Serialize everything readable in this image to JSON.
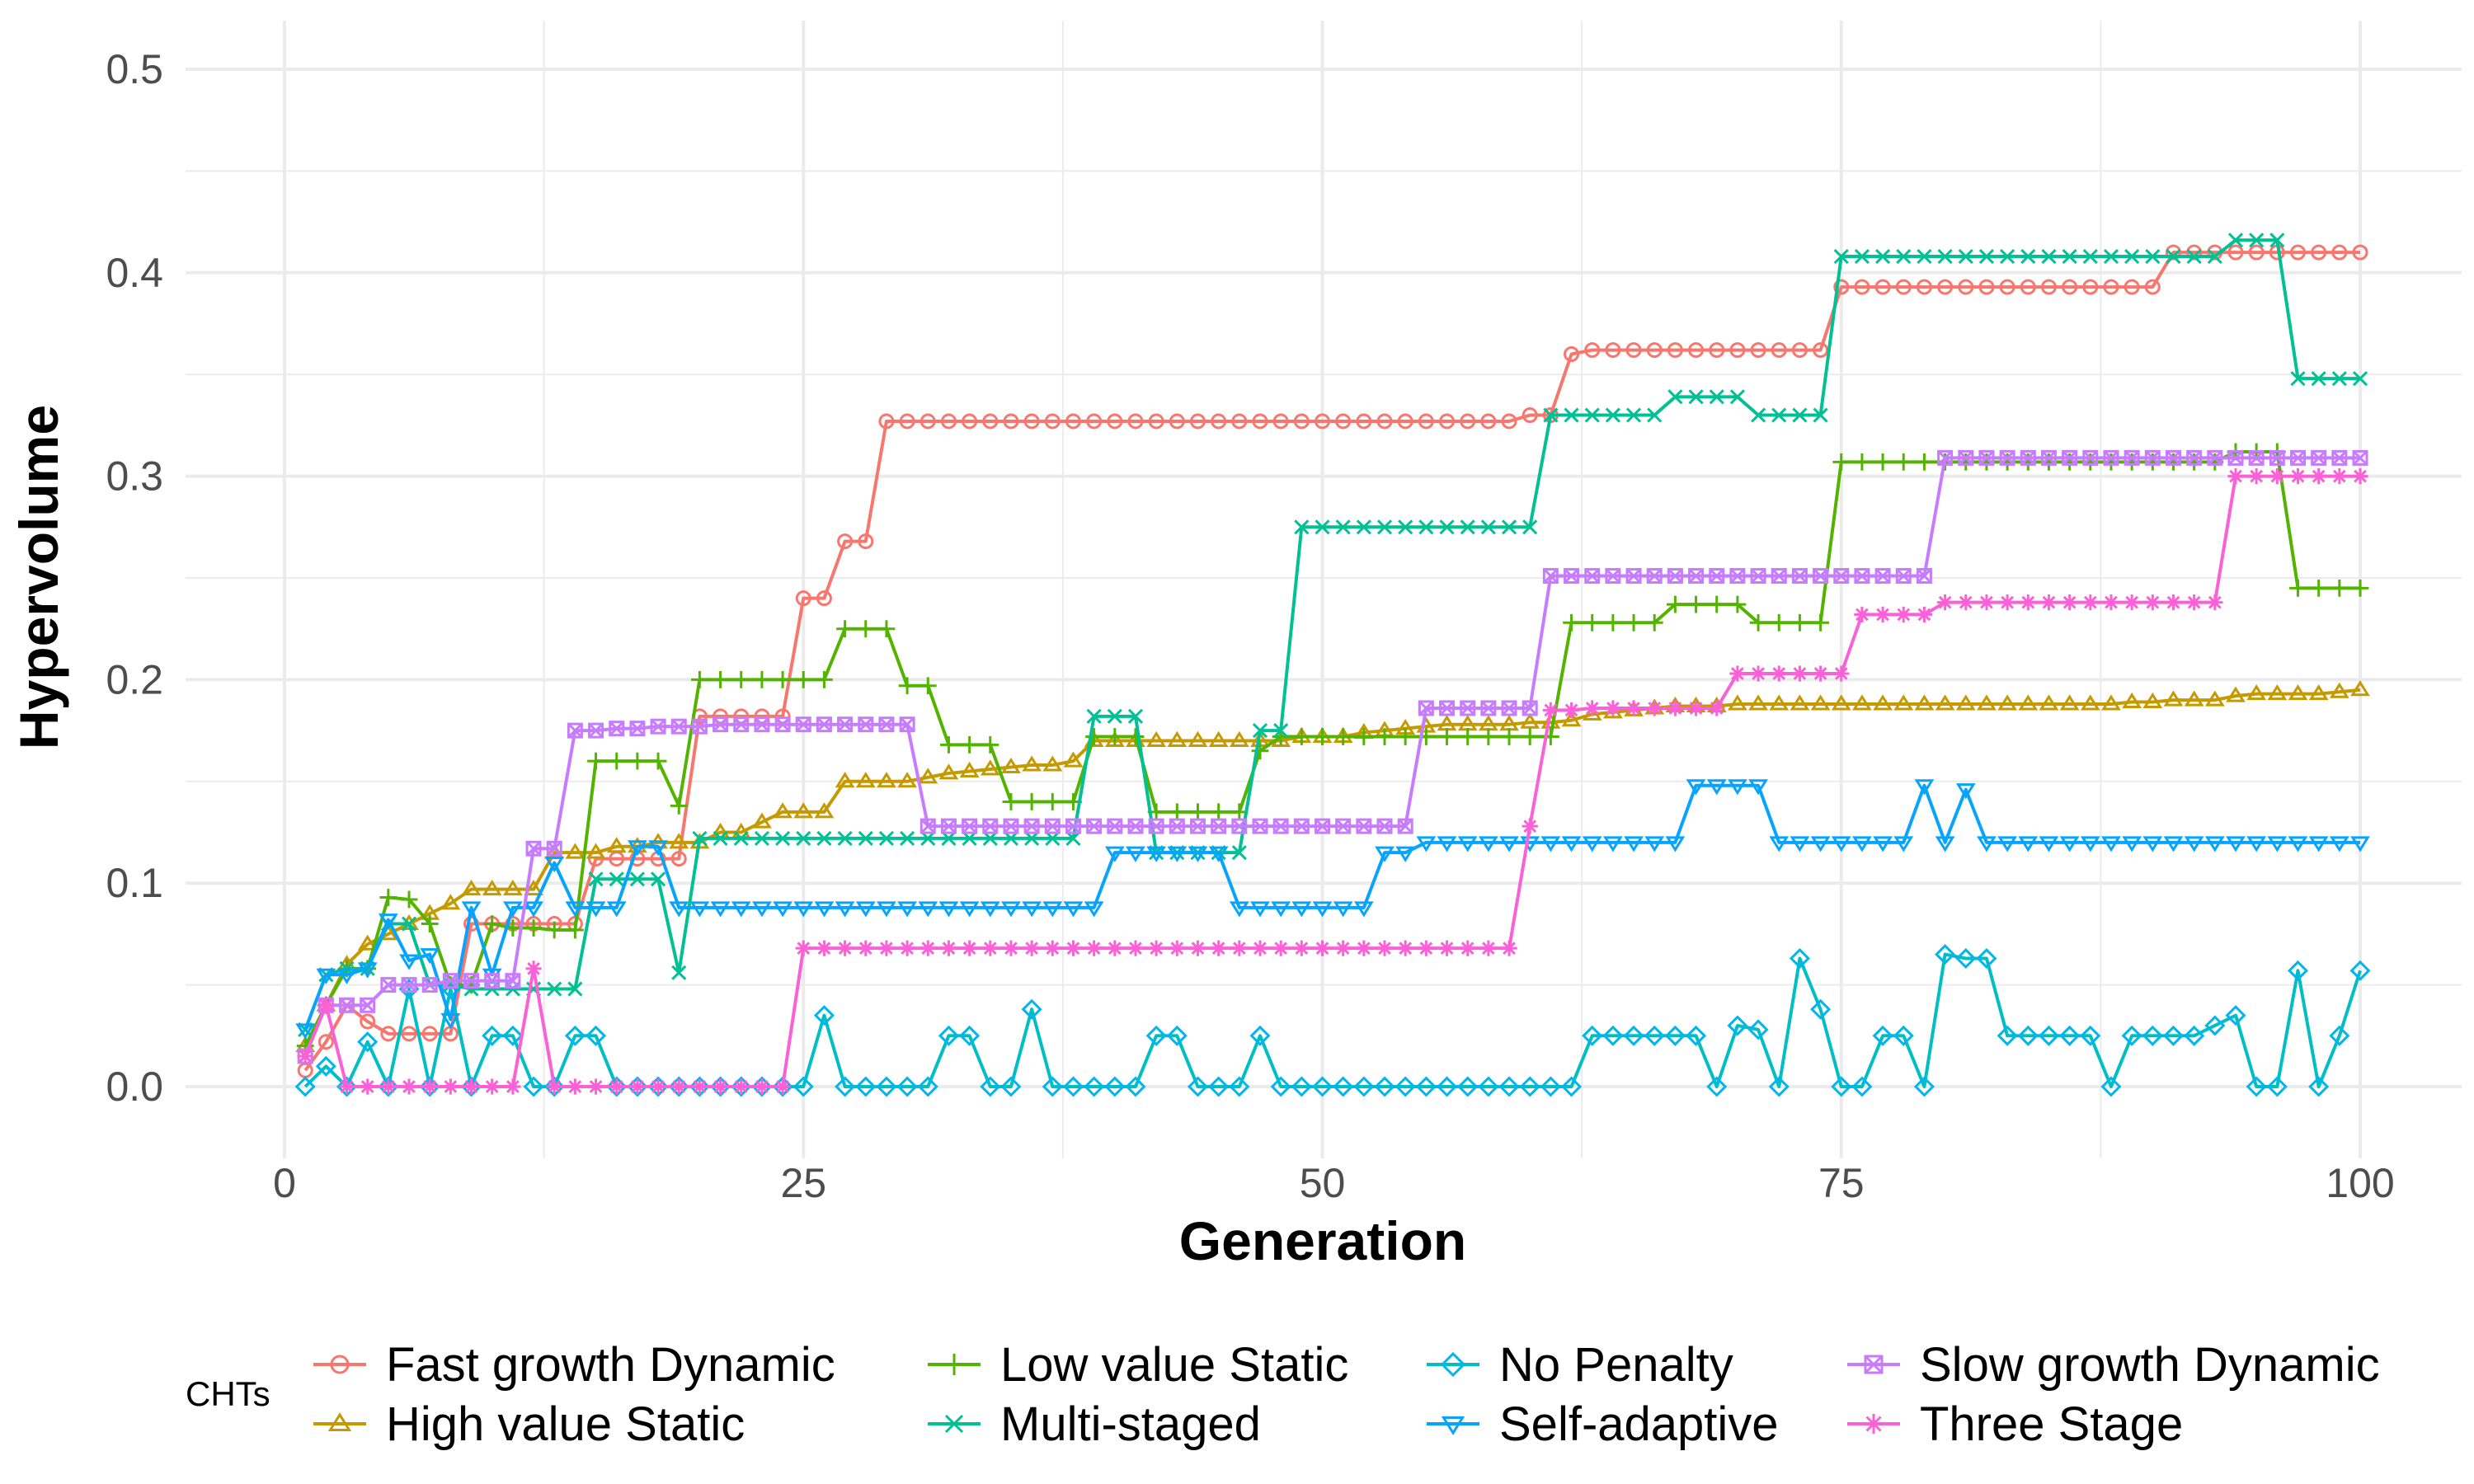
{
  "chart_data": {
    "type": "line",
    "xlabel": "Generation",
    "ylabel": "Hypervolume",
    "xlim": [
      0,
      100
    ],
    "ylim": [
      0,
      0.5
    ],
    "x_ticks": [
      0,
      25,
      50,
      75,
      100
    ],
    "y_ticks": [
      0.0,
      0.1,
      0.2,
      0.3,
      0.4,
      0.5
    ],
    "x_tick_labels": [
      "0",
      "25",
      "50",
      "75",
      "100"
    ],
    "y_tick_labels": [
      "0.0",
      "0.1",
      "0.2",
      "0.3",
      "0.4",
      "0.5"
    ],
    "grid": true,
    "legend": {
      "title": "CHTs",
      "position": "bottom"
    },
    "series": [
      {
        "name": "Fast growth Dynamic",
        "color": "#F8766D",
        "marker": "circle",
        "values": [
          0.008,
          0.022,
          0.04,
          0.032,
          0.026,
          0.026,
          0.026,
          0.026,
          0.08,
          0.08,
          0.08,
          0.08,
          0.08,
          0.08,
          0.112,
          0.112,
          0.112,
          0.112,
          0.112,
          0.182,
          0.182,
          0.182,
          0.182,
          0.182,
          0.24,
          0.24,
          0.268,
          0.268,
          0.327,
          0.327,
          0.327,
          0.327,
          0.327,
          0.327,
          0.327,
          0.327,
          0.327,
          0.327,
          0.327,
          0.327,
          0.327,
          0.327,
          0.327,
          0.327,
          0.327,
          0.327,
          0.327,
          0.327,
          0.327,
          0.327,
          0.327,
          0.327,
          0.327,
          0.327,
          0.327,
          0.327,
          0.327,
          0.327,
          0.327,
          0.33,
          0.33,
          0.36,
          0.362,
          0.362,
          0.362,
          0.362,
          0.362,
          0.362,
          0.362,
          0.362,
          0.362,
          0.362,
          0.362,
          0.362,
          0.393,
          0.393,
          0.393,
          0.393,
          0.393,
          0.393,
          0.393,
          0.393,
          0.393,
          0.393,
          0.393,
          0.393,
          0.393,
          0.393,
          0.393,
          0.393,
          0.41,
          0.41,
          0.41,
          0.41,
          0.41,
          0.41,
          0.41,
          0.41,
          0.41,
          0.41
        ]
      },
      {
        "name": "High value Static",
        "color": "#C49A00",
        "marker": "triangle-up",
        "values": [
          0.02,
          0.04,
          0.06,
          0.07,
          0.075,
          0.08,
          0.085,
          0.09,
          0.097,
          0.097,
          0.097,
          0.097,
          0.115,
          0.115,
          0.115,
          0.118,
          0.118,
          0.12,
          0.12,
          0.12,
          0.125,
          0.125,
          0.13,
          0.135,
          0.135,
          0.135,
          0.15,
          0.15,
          0.15,
          0.15,
          0.152,
          0.154,
          0.155,
          0.156,
          0.157,
          0.158,
          0.158,
          0.16,
          0.17,
          0.17,
          0.17,
          0.17,
          0.17,
          0.17,
          0.17,
          0.17,
          0.17,
          0.17,
          0.172,
          0.172,
          0.172,
          0.174,
          0.175,
          0.176,
          0.177,
          0.178,
          0.178,
          0.178,
          0.178,
          0.179,
          0.179,
          0.18,
          0.183,
          0.184,
          0.185,
          0.186,
          0.187,
          0.187,
          0.187,
          0.188,
          0.188,
          0.188,
          0.188,
          0.188,
          0.188,
          0.188,
          0.188,
          0.188,
          0.188,
          0.188,
          0.188,
          0.188,
          0.188,
          0.188,
          0.188,
          0.188,
          0.188,
          0.188,
          0.189,
          0.189,
          0.19,
          0.19,
          0.19,
          0.192,
          0.193,
          0.193,
          0.193,
          0.193,
          0.194,
          0.195
        ]
      },
      {
        "name": "Low value Static",
        "color": "#53B400",
        "marker": "plus",
        "values": [
          0.02,
          0.04,
          0.058,
          0.058,
          0.093,
          0.092,
          0.08,
          0.05,
          0.05,
          0.08,
          0.078,
          0.078,
          0.077,
          0.077,
          0.16,
          0.16,
          0.16,
          0.16,
          0.138,
          0.2,
          0.2,
          0.2,
          0.2,
          0.2,
          0.2,
          0.2,
          0.225,
          0.225,
          0.225,
          0.197,
          0.197,
          0.168,
          0.168,
          0.168,
          0.14,
          0.14,
          0.14,
          0.14,
          0.172,
          0.172,
          0.172,
          0.135,
          0.135,
          0.135,
          0.135,
          0.135,
          0.165,
          0.172,
          0.172,
          0.172,
          0.172,
          0.172,
          0.172,
          0.172,
          0.172,
          0.172,
          0.172,
          0.172,
          0.172,
          0.172,
          0.172,
          0.228,
          0.228,
          0.228,
          0.228,
          0.228,
          0.237,
          0.237,
          0.237,
          0.237,
          0.228,
          0.228,
          0.228,
          0.228,
          0.307,
          0.307,
          0.307,
          0.307,
          0.307,
          0.307,
          0.307,
          0.307,
          0.307,
          0.307,
          0.307,
          0.307,
          0.307,
          0.307,
          0.307,
          0.307,
          0.307,
          0.307,
          0.307,
          0.312,
          0.312,
          0.312,
          0.245,
          0.245,
          0.245,
          0.245
        ]
      },
      {
        "name": "Multi-staged",
        "color": "#00C094",
        "marker": "x",
        "values": [
          0.028,
          0.055,
          0.058,
          0.058,
          0.08,
          0.08,
          0.05,
          0.05,
          0.048,
          0.048,
          0.048,
          0.048,
          0.048,
          0.048,
          0.102,
          0.102,
          0.102,
          0.102,
          0.056,
          0.122,
          0.122,
          0.122,
          0.122,
          0.122,
          0.122,
          0.122,
          0.122,
          0.122,
          0.122,
          0.122,
          0.122,
          0.122,
          0.122,
          0.122,
          0.122,
          0.122,
          0.122,
          0.122,
          0.182,
          0.182,
          0.182,
          0.115,
          0.115,
          0.115,
          0.115,
          0.115,
          0.175,
          0.175,
          0.275,
          0.275,
          0.275,
          0.275,
          0.275,
          0.275,
          0.275,
          0.275,
          0.275,
          0.275,
          0.275,
          0.275,
          0.33,
          0.33,
          0.33,
          0.33,
          0.33,
          0.33,
          0.339,
          0.339,
          0.339,
          0.339,
          0.33,
          0.33,
          0.33,
          0.33,
          0.408,
          0.408,
          0.408,
          0.408,
          0.408,
          0.408,
          0.408,
          0.408,
          0.408,
          0.408,
          0.408,
          0.408,
          0.408,
          0.408,
          0.408,
          0.408,
          0.408,
          0.408,
          0.408,
          0.416,
          0.416,
          0.416,
          0.348,
          0.348,
          0.348,
          0.348
        ]
      },
      {
        "name": "No Penalty",
        "color": "#00B6EB",
        "marker": "diamond",
        "line_color": "#00BFC4",
        "values": [
          0,
          0.01,
          0,
          0.022,
          0,
          0.048,
          0,
          0.048,
          0,
          0.025,
          0.025,
          0,
          0,
          0.025,
          0.025,
          0,
          0,
          0,
          0,
          0,
          0,
          0,
          0,
          0,
          0,
          0.035,
          0,
          0,
          0,
          0,
          0,
          0.025,
          0.025,
          0,
          0,
          0.038,
          0,
          0,
          0,
          0,
          0,
          0.025,
          0.025,
          0,
          0,
          0,
          0.025,
          0,
          0,
          0,
          0,
          0,
          0,
          0,
          0,
          0,
          0,
          0,
          0,
          0,
          0,
          0,
          0.025,
          0.025,
          0.025,
          0.025,
          0.025,
          0.025,
          0,
          0.03,
          0.028,
          0,
          0.063,
          0.038,
          0,
          0,
          0.025,
          0.025,
          0,
          0.065,
          0.063,
          0.063,
          0.025,
          0.025,
          0.025,
          0.025,
          0.025,
          0,
          0.025,
          0.025,
          0.025,
          0.025,
          0.03,
          0.035,
          0,
          0,
          0.057,
          0,
          0.025,
          0.057
        ]
      },
      {
        "name": "Self-adaptive",
        "color": "#06A4FF",
        "marker": "triangle-down",
        "values": [
          0.028,
          0.055,
          0.055,
          0.058,
          0.082,
          0.062,
          0.065,
          0.033,
          0.088,
          0.055,
          0.088,
          0.088,
          0.11,
          0.088,
          0.088,
          0.088,
          0.118,
          0.118,
          0.088,
          0.088,
          0.088,
          0.088,
          0.088,
          0.088,
          0.088,
          0.088,
          0.088,
          0.088,
          0.088,
          0.088,
          0.088,
          0.088,
          0.088,
          0.088,
          0.088,
          0.088,
          0.088,
          0.088,
          0.088,
          0.115,
          0.115,
          0.115,
          0.115,
          0.115,
          0.115,
          0.088,
          0.088,
          0.088,
          0.088,
          0.088,
          0.088,
          0.088,
          0.115,
          0.115,
          0.12,
          0.12,
          0.12,
          0.12,
          0.12,
          0.12,
          0.12,
          0.12,
          0.12,
          0.12,
          0.12,
          0.12,
          0.12,
          0.148,
          0.148,
          0.148,
          0.148,
          0.12,
          0.12,
          0.12,
          0.12,
          0.12,
          0.12,
          0.12,
          0.148,
          0.12,
          0.146,
          0.12,
          0.12,
          0.12,
          0.12,
          0.12,
          0.12,
          0.12,
          0.12,
          0.12,
          0.12,
          0.12,
          0.12,
          0.12,
          0.12,
          0.12,
          0.12,
          0.12,
          0.12,
          0.12
        ]
      },
      {
        "name": "Slow growth Dynamic",
        "color": "#C77CFF",
        "marker": "square-x",
        "values": [
          0.015,
          0.04,
          0.04,
          0.04,
          0.05,
          0.05,
          0.05,
          0.052,
          0.052,
          0.052,
          0.052,
          0.117,
          0.117,
          0.175,
          0.175,
          0.176,
          0.176,
          0.177,
          0.177,
          0.177,
          0.178,
          0.178,
          0.178,
          0.178,
          0.178,
          0.178,
          0.178,
          0.178,
          0.178,
          0.178,
          0.128,
          0.128,
          0.128,
          0.128,
          0.128,
          0.128,
          0.128,
          0.128,
          0.128,
          0.128,
          0.128,
          0.128,
          0.128,
          0.128,
          0.128,
          0.128,
          0.128,
          0.128,
          0.128,
          0.128,
          0.128,
          0.128,
          0.128,
          0.128,
          0.186,
          0.186,
          0.186,
          0.186,
          0.186,
          0.186,
          0.251,
          0.251,
          0.251,
          0.251,
          0.251,
          0.251,
          0.251,
          0.251,
          0.251,
          0.251,
          0.251,
          0.251,
          0.251,
          0.251,
          0.251,
          0.251,
          0.251,
          0.251,
          0.251,
          0.309,
          0.309,
          0.309,
          0.309,
          0.309,
          0.309,
          0.309,
          0.309,
          0.309,
          0.309,
          0.309,
          0.309,
          0.309,
          0.309,
          0.309,
          0.309,
          0.309,
          0.309,
          0.309,
          0.309,
          0.309
        ]
      },
      {
        "name": "Three Stage",
        "color": "#FB61D7",
        "marker": "asterisk",
        "values": [
          0.015,
          0.04,
          0,
          0,
          0,
          0,
          0,
          0,
          0,
          0,
          0,
          0.058,
          0,
          0,
          0,
          0,
          0,
          0,
          0,
          0,
          0,
          0,
          0,
          0,
          0.068,
          0.068,
          0.068,
          0.068,
          0.068,
          0.068,
          0.068,
          0.068,
          0.068,
          0.068,
          0.068,
          0.068,
          0.068,
          0.068,
          0.068,
          0.068,
          0.068,
          0.068,
          0.068,
          0.068,
          0.068,
          0.068,
          0.068,
          0.068,
          0.068,
          0.068,
          0.068,
          0.068,
          0.068,
          0.068,
          0.068,
          0.068,
          0.068,
          0.068,
          0.068,
          0.128,
          0.185,
          0.185,
          0.186,
          0.186,
          0.186,
          0.186,
          0.186,
          0.186,
          0.186,
          0.203,
          0.203,
          0.203,
          0.203,
          0.203,
          0.203,
          0.232,
          0.232,
          0.232,
          0.232,
          0.238,
          0.238,
          0.238,
          0.238,
          0.238,
          0.238,
          0.238,
          0.238,
          0.238,
          0.238,
          0.238,
          0.238,
          0.238,
          0.238,
          0.3,
          0.3,
          0.3,
          0.3,
          0.3,
          0.3,
          0.3
        ]
      }
    ]
  }
}
